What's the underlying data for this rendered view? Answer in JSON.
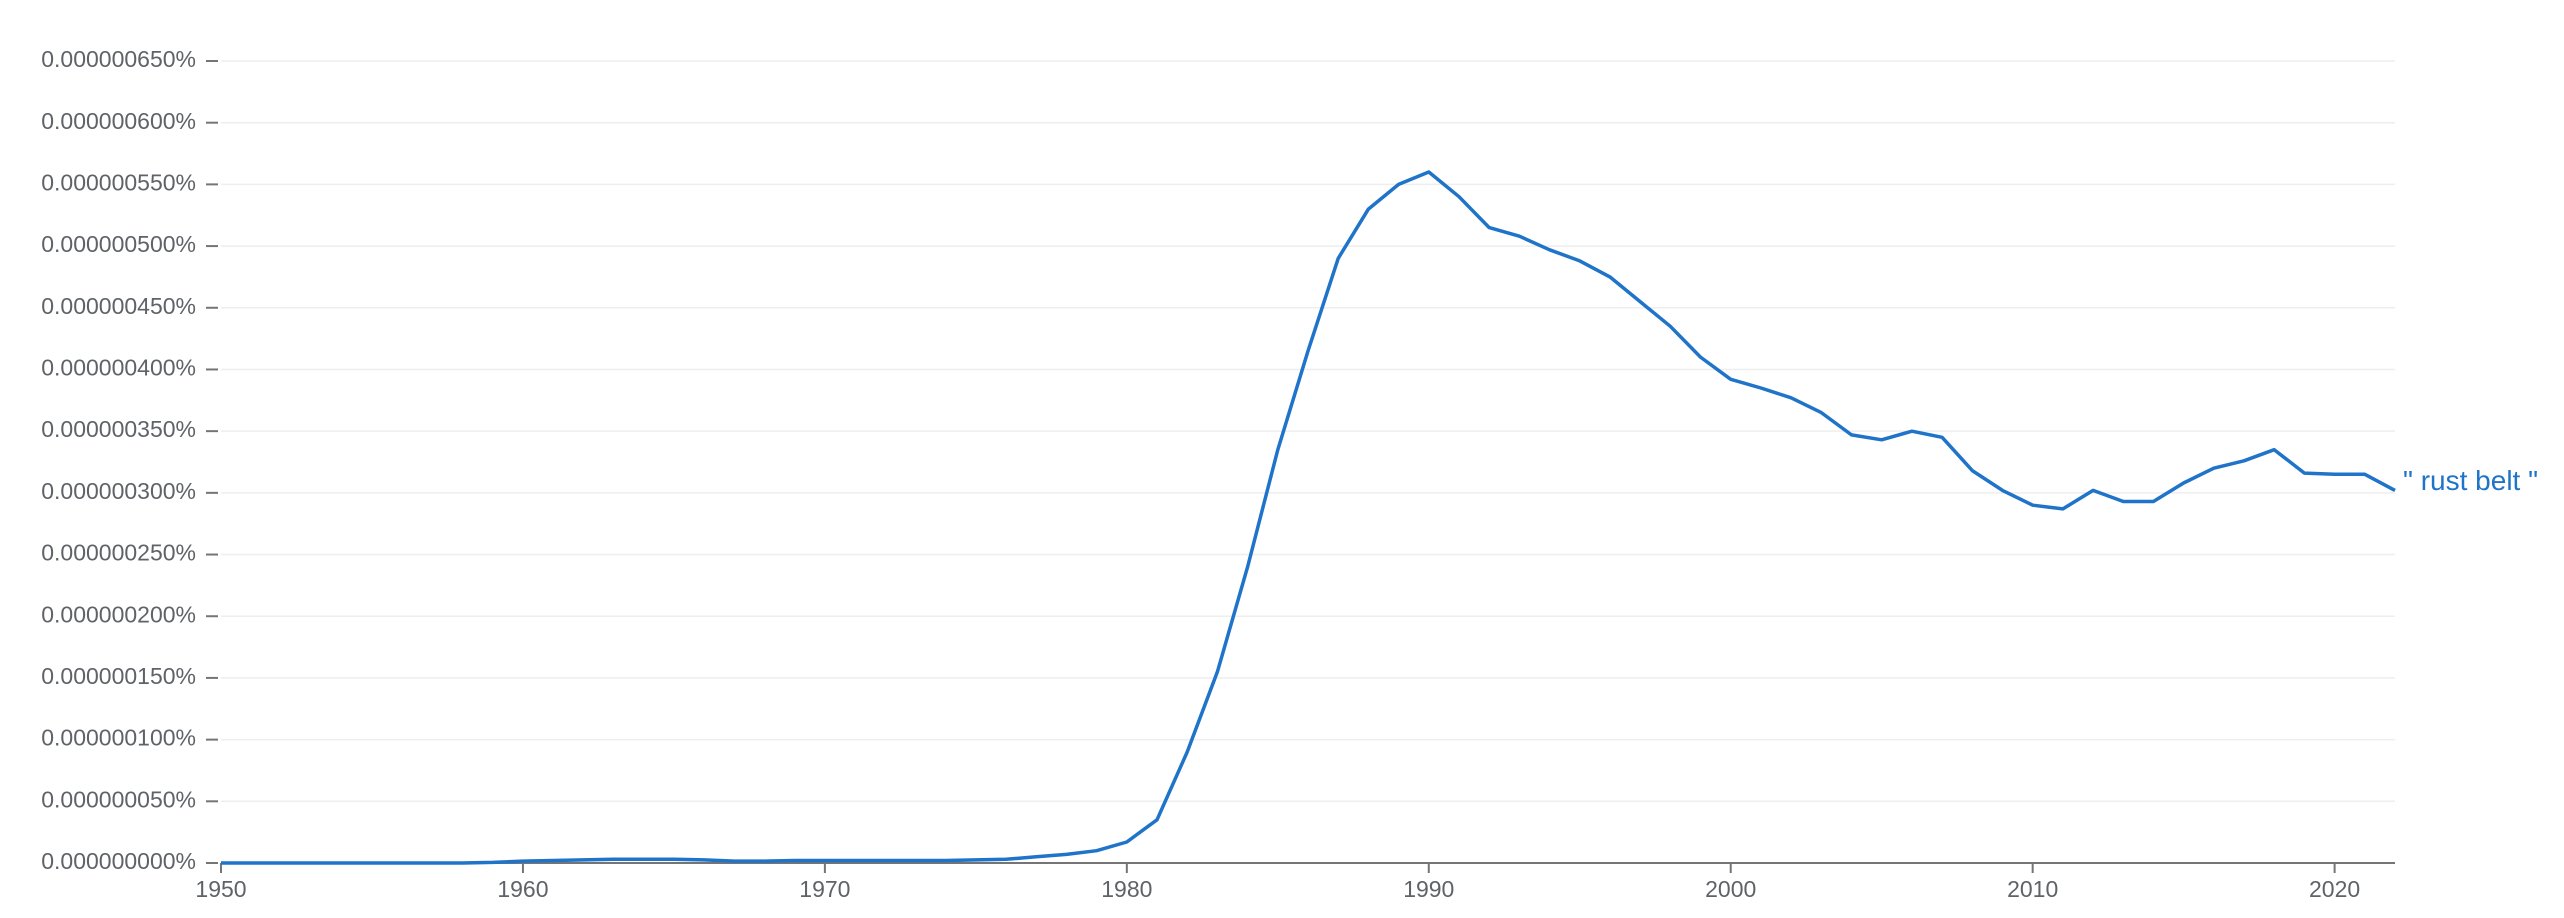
{
  "chart_data": {
    "type": "line",
    "x": [
      1950,
      1951,
      1952,
      1953,
      1954,
      1955,
      1956,
      1957,
      1958,
      1959,
      1960,
      1961,
      1962,
      1963,
      1964,
      1965,
      1966,
      1967,
      1968,
      1969,
      1970,
      1971,
      1972,
      1973,
      1974,
      1975,
      1976,
      1977,
      1978,
      1979,
      1980,
      1981,
      1982,
      1983,
      1984,
      1985,
      1986,
      1987,
      1988,
      1989,
      1990,
      1991,
      1992,
      1993,
      1994,
      1995,
      1996,
      1997,
      1998,
      1999,
      2000,
      2001,
      2002,
      2003,
      2004,
      2005,
      2006,
      2007,
      2008,
      2009,
      2010,
      2011,
      2012,
      2013,
      2014,
      2015,
      2016,
      2017,
      2018,
      2019,
      2020,
      2021,
      2022
    ],
    "series": [
      {
        "name": "\" rust belt \"",
        "color": "#1f74c9",
        "values": [
          0,
          0,
          0,
          0,
          0,
          0,
          0,
          0,
          0,
          5e-10,
          1.5e-09,
          2e-09,
          2.5e-09,
          3e-09,
          3e-09,
          3e-09,
          2.5e-09,
          1.5e-09,
          1.5e-09,
          2e-09,
          2e-09,
          2e-09,
          2e-09,
          2e-09,
          2e-09,
          2.5e-09,
          3e-09,
          5e-09,
          7e-09,
          1e-08,
          1.7e-08,
          3.5e-08,
          9e-08,
          1.55e-07,
          2.4e-07,
          3.35e-07,
          4.15e-07,
          4.9e-07,
          5.3e-07,
          5.5e-07,
          5.6e-07,
          5.4e-07,
          5.15e-07,
          5.08e-07,
          4.97e-07,
          4.88e-07,
          4.75e-07,
          4.55e-07,
          4.35e-07,
          4.1e-07,
          3.92e-07,
          3.85e-07,
          3.77e-07,
          3.65e-07,
          3.47e-07,
          3.43e-07,
          3.5e-07,
          3.45e-07,
          3.18e-07,
          3.02e-07,
          2.9e-07,
          2.87e-07,
          3.02e-07,
          2.93e-07,
          2.93e-07,
          3.08e-07,
          3.2e-07,
          3.26e-07,
          3.35e-07,
          3.16e-07,
          3.15e-07,
          3.15e-07,
          3.02e-07
        ]
      }
    ],
    "xlim": [
      1950,
      2022
    ],
    "xticks": [
      1950,
      1960,
      1970,
      1980,
      1990,
      2000,
      2010,
      2020
    ],
    "ylim": [
      0,
      6.5e-07
    ],
    "yticks": [
      {
        "value": 0,
        "label": "0.000000000%"
      },
      {
        "value": 5e-08,
        "label": "0.000000050%"
      },
      {
        "value": 1e-07,
        "label": "0.000000100%"
      },
      {
        "value": 1.5e-07,
        "label": "0.000000150%"
      },
      {
        "value": 2e-07,
        "label": "0.000000200%"
      },
      {
        "value": 2.5e-07,
        "label": "0.000000250%"
      },
      {
        "value": 3e-07,
        "label": "0.000000300%"
      },
      {
        "value": 3.5e-07,
        "label": "0.000000350%"
      },
      {
        "value": 4e-07,
        "label": "0.000000400%"
      },
      {
        "value": 4.5e-07,
        "label": "0.000000450%"
      },
      {
        "value": 5e-07,
        "label": "0.000000500%"
      },
      {
        "value": 5.5e-07,
        "label": "0.000000550%"
      },
      {
        "value": 6e-07,
        "label": "0.000000600%"
      },
      {
        "value": 6.5e-07,
        "label": "0.000000650%"
      }
    ],
    "grid": true
  }
}
